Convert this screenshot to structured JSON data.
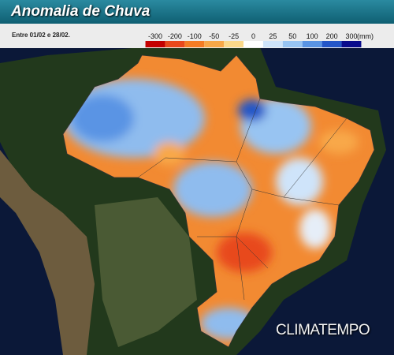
{
  "header": {
    "title": "Anomalia de Chuva",
    "period": "Entre 01/02 e 28/02."
  },
  "legend": {
    "ticks": [
      -300,
      -200,
      -100,
      -50,
      -25,
      0,
      25,
      50,
      100,
      200,
      300
    ],
    "colors": [
      "#c40000",
      "#e8481c",
      "#f47c24",
      "#f8a848",
      "#fbd98a",
      "#ffffff",
      "#cfe4fa",
      "#98c4f2",
      "#5a94e4",
      "#2456c8",
      "#0a0c8c"
    ],
    "unit": "(mm)"
  },
  "brand": "CLIMATEMPO"
}
